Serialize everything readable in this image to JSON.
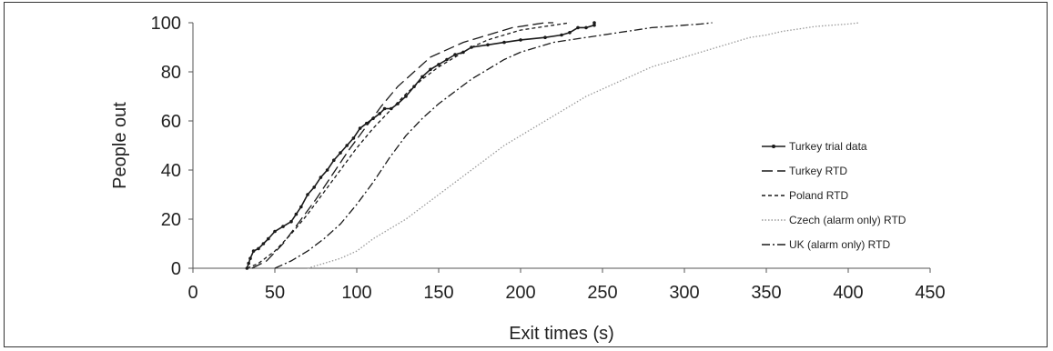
{
  "chart_data": {
    "type": "line",
    "title": "",
    "xlabel": "Exit times (s)",
    "ylabel": "People out",
    "xlim": [
      0,
      450
    ],
    "ylim": [
      0,
      100
    ],
    "x_ticks": [
      0,
      50,
      100,
      150,
      200,
      250,
      300,
      350,
      400,
      450
    ],
    "y_ticks": [
      0,
      20,
      40,
      60,
      80,
      100
    ],
    "grid": false,
    "legend_position": "right",
    "series": [
      {
        "name": "Turkey trial data",
        "style": "solid-markers",
        "color": "#1a1a1a",
        "points": [
          [
            33,
            0
          ],
          [
            34,
            2
          ],
          [
            35,
            4
          ],
          [
            37,
            7
          ],
          [
            40,
            8
          ],
          [
            43,
            10
          ],
          [
            46,
            12
          ],
          [
            50,
            15
          ],
          [
            55,
            17
          ],
          [
            60,
            19
          ],
          [
            63,
            22
          ],
          [
            66,
            25
          ],
          [
            70,
            30
          ],
          [
            74,
            33
          ],
          [
            78,
            37
          ],
          [
            82,
            40
          ],
          [
            86,
            44
          ],
          [
            90,
            47
          ],
          [
            94,
            50
          ],
          [
            98,
            53
          ],
          [
            102,
            57
          ],
          [
            106,
            59
          ],
          [
            110,
            61
          ],
          [
            114,
            63
          ],
          [
            117,
            65
          ],
          [
            121,
            65
          ],
          [
            125,
            67
          ],
          [
            130,
            70
          ],
          [
            135,
            74
          ],
          [
            140,
            78
          ],
          [
            145,
            81
          ],
          [
            150,
            83
          ],
          [
            155,
            85
          ],
          [
            160,
            87
          ],
          [
            165,
            88
          ],
          [
            170,
            90
          ],
          [
            180,
            91
          ],
          [
            190,
            92
          ],
          [
            200,
            93
          ],
          [
            215,
            94
          ],
          [
            225,
            95
          ],
          [
            230,
            96
          ],
          [
            235,
            98
          ],
          [
            240,
            98
          ],
          [
            245,
            99
          ],
          [
            245,
            100
          ]
        ]
      },
      {
        "name": "Turkey RTD",
        "style": "long-dash",
        "color": "#1a1a1a",
        "points": [
          [
            36,
            0
          ],
          [
            45,
            3
          ],
          [
            55,
            10
          ],
          [
            65,
            19
          ],
          [
            75,
            28
          ],
          [
            85,
            38
          ],
          [
            95,
            48
          ],
          [
            105,
            57
          ],
          [
            115,
            66
          ],
          [
            125,
            74
          ],
          [
            135,
            80
          ],
          [
            145,
            86
          ],
          [
            155,
            89
          ],
          [
            165,
            92
          ],
          [
            175,
            94
          ],
          [
            185,
            96
          ],
          [
            195,
            98
          ],
          [
            205,
            99
          ],
          [
            215,
            100
          ],
          [
            220,
            100
          ]
        ]
      },
      {
        "name": "Poland RTD",
        "style": "short-dash",
        "color": "#1a1a1a",
        "points": [
          [
            33,
            0
          ],
          [
            40,
            2
          ],
          [
            50,
            7
          ],
          [
            60,
            14
          ],
          [
            70,
            22
          ],
          [
            80,
            31
          ],
          [
            90,
            40
          ],
          [
            100,
            49
          ],
          [
            110,
            57
          ],
          [
            120,
            64
          ],
          [
            130,
            71
          ],
          [
            140,
            77
          ],
          [
            150,
            82
          ],
          [
            160,
            86
          ],
          [
            170,
            90
          ],
          [
            180,
            93
          ],
          [
            190,
            95
          ],
          [
            200,
            97
          ],
          [
            210,
            98
          ],
          [
            220,
            99
          ],
          [
            230,
            100
          ]
        ]
      },
      {
        "name": "Czech (alarm only) RTD",
        "style": "dotted",
        "color": "#9a9a9a",
        "points": [
          [
            70,
            0
          ],
          [
            80,
            2
          ],
          [
            90,
            4
          ],
          [
            100,
            7
          ],
          [
            110,
            12
          ],
          [
            120,
            16
          ],
          [
            130,
            20
          ],
          [
            140,
            25
          ],
          [
            150,
            30
          ],
          [
            160,
            35
          ],
          [
            170,
            40
          ],
          [
            180,
            45
          ],
          [
            190,
            50
          ],
          [
            200,
            54
          ],
          [
            210,
            58
          ],
          [
            220,
            62
          ],
          [
            230,
            66
          ],
          [
            240,
            70
          ],
          [
            250,
            73
          ],
          [
            260,
            76
          ],
          [
            270,
            79
          ],
          [
            280,
            82
          ],
          [
            290,
            84
          ],
          [
            300,
            86
          ],
          [
            310,
            88
          ],
          [
            320,
            90
          ],
          [
            330,
            92
          ],
          [
            340,
            94
          ],
          [
            350,
            95
          ],
          [
            360,
            96.5
          ],
          [
            370,
            97.5
          ],
          [
            380,
            98.5
          ],
          [
            390,
            99
          ],
          [
            400,
            99.5
          ],
          [
            407,
            100
          ]
        ]
      },
      {
        "name": "UK (alarm only) RTD",
        "style": "dash-dot",
        "color": "#1a1a1a",
        "points": [
          [
            50,
            0
          ],
          [
            60,
            3
          ],
          [
            70,
            7
          ],
          [
            80,
            12
          ],
          [
            90,
            18
          ],
          [
            100,
            26
          ],
          [
            110,
            35
          ],
          [
            120,
            45
          ],
          [
            130,
            54
          ],
          [
            140,
            61
          ],
          [
            150,
            67
          ],
          [
            160,
            72
          ],
          [
            170,
            77
          ],
          [
            180,
            81
          ],
          [
            190,
            85
          ],
          [
            200,
            88
          ],
          [
            210,
            90
          ],
          [
            220,
            92
          ],
          [
            230,
            93
          ],
          [
            240,
            94
          ],
          [
            250,
            95
          ],
          [
            260,
            96
          ],
          [
            270,
            97
          ],
          [
            280,
            98
          ],
          [
            290,
            98.5
          ],
          [
            300,
            99
          ],
          [
            310,
            99.5
          ],
          [
            317,
            100
          ]
        ]
      }
    ]
  }
}
